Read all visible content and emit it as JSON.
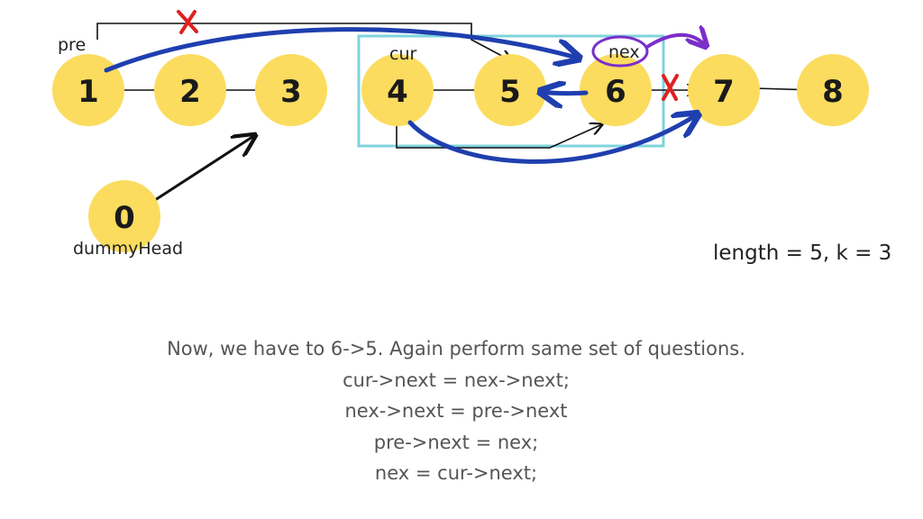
{
  "diagram": {
    "nodes": [
      {
        "id": "n1",
        "label": "1"
      },
      {
        "id": "n2",
        "label": "2"
      },
      {
        "id": "n3",
        "label": "3"
      },
      {
        "id": "n4",
        "label": "4"
      },
      {
        "id": "n5",
        "label": "5"
      },
      {
        "id": "n6",
        "label": "6"
      },
      {
        "id": "n7",
        "label": "7"
      },
      {
        "id": "n8",
        "label": "8"
      },
      {
        "id": "n0",
        "label": "0"
      }
    ],
    "pointer_labels": {
      "pre": "pre",
      "cur": "cur",
      "nex": "nex",
      "dummy": "dummyHead"
    },
    "colors": {
      "node_fill": "#FBDC5F",
      "window_border": "#7FD3DC",
      "new_link": "#1F3FAF",
      "nex_move": "#7B2FC9",
      "removed": "#E02020",
      "old_link": "#111111"
    }
  },
  "info": "length = 5, k = 3",
  "caption": {
    "lines": [
      "Now, we have to 6->5. Again perform same set of questions.",
      "cur->next = nex->next;",
      "nex->next = pre->next",
      "pre->next = nex;",
      "nex = cur->next;"
    ]
  }
}
